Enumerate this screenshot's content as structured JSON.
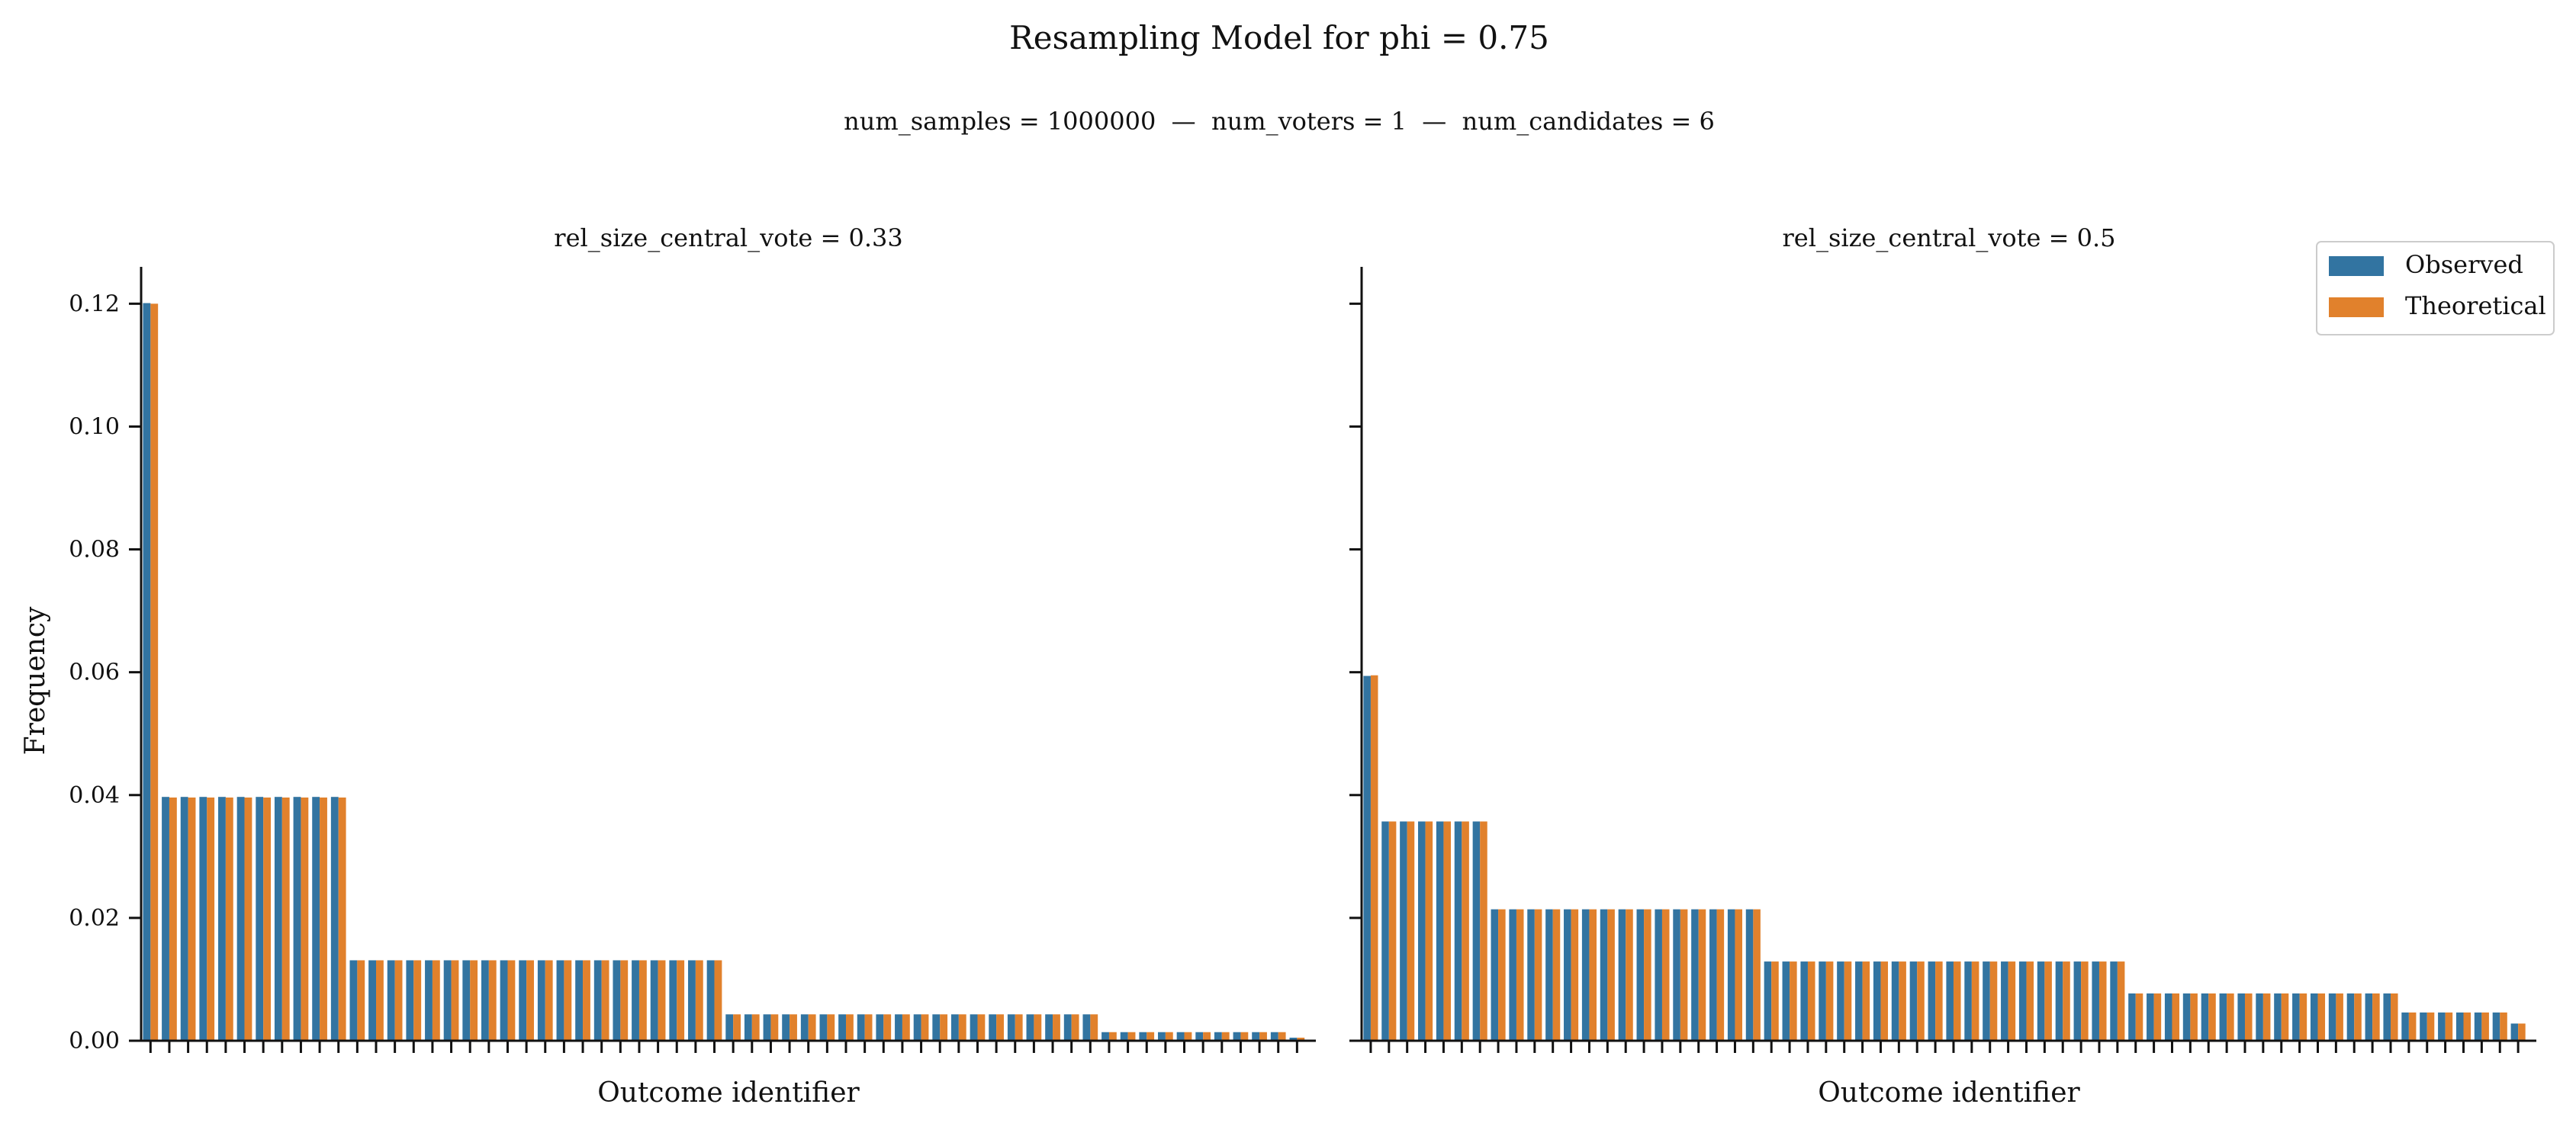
{
  "chart_data": {
    "type": "bar",
    "title": "Resampling Model for phi = 0.75",
    "subtitle": "num_samples = 1000000  —  num_voters = 1  —  num_candidates = 6",
    "ylabel": "Frequency",
    "xlabel": "Outcome identifier",
    "ylim": [
      0,
      0.126
    ],
    "yticks": [
      "0.00",
      "0.02",
      "0.04",
      "0.06",
      "0.08",
      "0.10",
      "0.12"
    ],
    "legend": {
      "placement": "top-right",
      "entries": [
        "Observed",
        "Theoretical"
      ]
    },
    "colors": {
      "Observed": "#3274a1",
      "Theoretical": "#e1812c"
    },
    "panels": [
      {
        "title": "rel_size_central_vote = 0.33",
        "groups": [
          {
            "count": 1,
            "observed": 0.1201,
            "theoretical": 0.12
          },
          {
            "count": 10,
            "observed": 0.0397,
            "theoretical": 0.0396
          },
          {
            "count": 20,
            "observed": 0.0131,
            "theoretical": 0.0131
          },
          {
            "count": 20,
            "observed": 0.0043,
            "theoretical": 0.0043
          },
          {
            "count": 10,
            "observed": 0.0014,
            "theoretical": 0.0014
          },
          {
            "count": 1,
            "observed": 0.0005,
            "theoretical": 0.0005
          }
        ]
      },
      {
        "title": "rel_size_central_vote = 0.5",
        "groups": [
          {
            "count": 1,
            "observed": 0.0594,
            "theoretical": 0.0595
          },
          {
            "count": 6,
            "observed": 0.0357,
            "theoretical": 0.0357
          },
          {
            "count": 15,
            "observed": 0.0214,
            "theoretical": 0.0214
          },
          {
            "count": 20,
            "observed": 0.0129,
            "theoretical": 0.0129
          },
          {
            "count": 15,
            "observed": 0.0077,
            "theoretical": 0.0077
          },
          {
            "count": 6,
            "observed": 0.0046,
            "theoretical": 0.0046
          },
          {
            "count": 1,
            "observed": 0.0028,
            "theoretical": 0.0028
          }
        ]
      }
    ]
  }
}
